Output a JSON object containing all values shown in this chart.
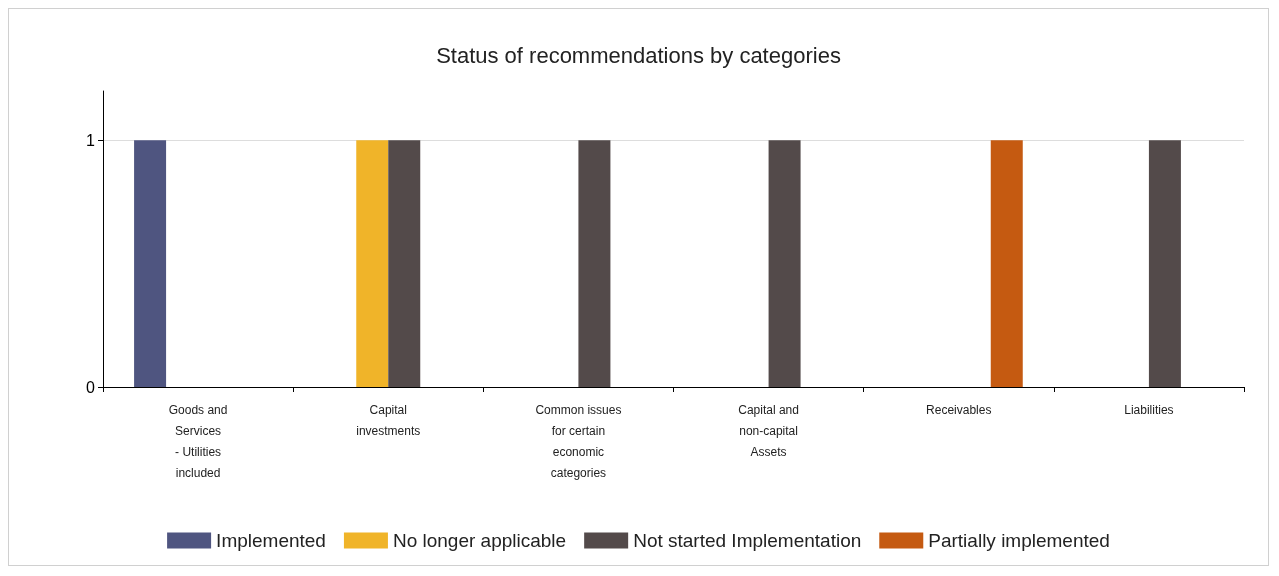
{
  "chart_data": {
    "type": "bar",
    "title": "Status of recommendations by categories",
    "categories": [
      "Goods and\nServices\n- Utilities\nincluded",
      "Capital\ninvestments",
      "Common issues\nfor certain\neconomic\ncategories",
      "Capital and\nnon-capital\nAssets",
      "Receivables",
      "Liabilities"
    ],
    "series": [
      {
        "name": "Implemented",
        "color": "#4f5580",
        "values": [
          1,
          null,
          null,
          null,
          null,
          null
        ]
      },
      {
        "name": "No longer applicable",
        "color": "#f0b429",
        "values": [
          null,
          1,
          null,
          null,
          null,
          null
        ]
      },
      {
        "name": "Not started Implementation",
        "color": "#534a4a",
        "values": [
          null,
          1,
          1,
          1,
          null,
          1
        ]
      },
      {
        "name": "Partially implemented",
        "color": "#c55a11",
        "values": [
          null,
          null,
          null,
          null,
          1,
          null
        ]
      }
    ],
    "ylim": [
      0,
      1.2
    ],
    "yticks": [
      0,
      1
    ],
    "grid": "y",
    "legend": "bottom"
  }
}
